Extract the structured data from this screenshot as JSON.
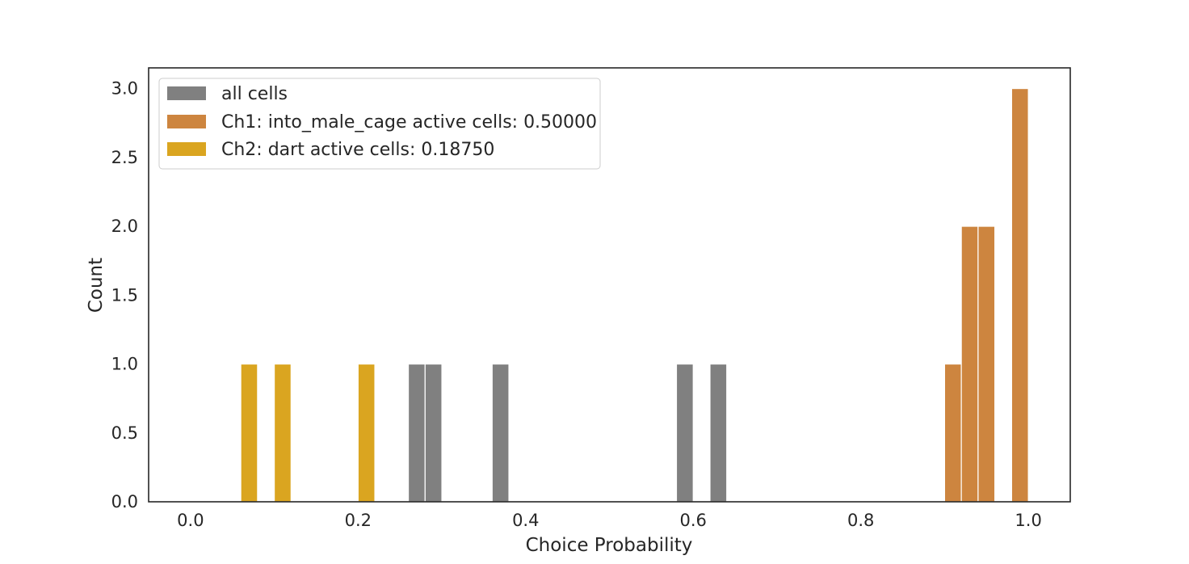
{
  "chart_data": {
    "type": "histogram",
    "title": "",
    "xlabel": "Choice Probability",
    "ylabel": "Count",
    "xlim": [
      -0.05,
      1.05
    ],
    "ylim": [
      0,
      3.15
    ],
    "bin_width": 0.02,
    "xticks": [
      0.0,
      0.2,
      0.4,
      0.6,
      0.8,
      1.0
    ],
    "xtick_labels": [
      "0.0",
      "0.2",
      "0.4",
      "0.6",
      "0.8",
      "1.0"
    ],
    "yticks": [
      0.0,
      0.5,
      1.0,
      1.5,
      2.0,
      2.5,
      3.0
    ],
    "ytick_labels": [
      "0.0",
      "0.5",
      "1.0",
      "1.5",
      "2.0",
      "2.5",
      "3.0"
    ],
    "grid": false,
    "legend_position": "top-left",
    "series": [
      {
        "name": "all cells",
        "color": "#808080",
        "bins": [
          {
            "x0": 0.26,
            "count": 1
          },
          {
            "x0": 0.28,
            "count": 1
          },
          {
            "x0": 0.36,
            "count": 1
          },
          {
            "x0": 0.58,
            "count": 1
          },
          {
            "x0": 0.62,
            "count": 1
          }
        ]
      },
      {
        "name": "Ch1: into_male_cage active cells: 0.50000",
        "color": "#CD853F",
        "bins": [
          {
            "x0": 0.9,
            "count": 1
          },
          {
            "x0": 0.92,
            "count": 2
          },
          {
            "x0": 0.94,
            "count": 2
          },
          {
            "x0": 0.98,
            "count": 3
          }
        ]
      },
      {
        "name": "Ch2: dart active cells: 0.18750",
        "color": "#DAA520",
        "bins": [
          {
            "x0": 0.06,
            "count": 1
          },
          {
            "x0": 0.1,
            "count": 1
          },
          {
            "x0": 0.2,
            "count": 1
          }
        ]
      }
    ]
  }
}
